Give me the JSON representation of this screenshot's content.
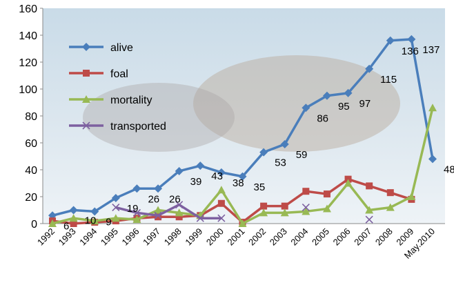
{
  "chart_data": {
    "type": "line",
    "categories": [
      "1992",
      "1993",
      "1994",
      "1995",
      "1996",
      "1997",
      "1998",
      "1999",
      "2000",
      "2001",
      "2002",
      "2003",
      "2004",
      "2005",
      "2006",
      "2007",
      "2008",
      "2009",
      "May.2010"
    ],
    "series": [
      {
        "name": "alive",
        "color": "#4a7ebb",
        "marker": "diamond",
        "values": [
          6,
          10,
          9,
          19,
          26,
          26,
          39,
          43,
          38,
          35,
          53,
          59,
          86,
          95,
          97,
          115,
          136,
          137,
          48
        ]
      },
      {
        "name": "foal",
        "color": "#be4b48",
        "marker": "square",
        "values": [
          2,
          0,
          1,
          2,
          4,
          5,
          5,
          6,
          15,
          1,
          13,
          13,
          24,
          22,
          33,
          28,
          23,
          18,
          null
        ]
      },
      {
        "name": "mortality",
        "color": "#98b954",
        "marker": "triangle",
        "values": [
          0,
          4,
          2,
          4,
          3,
          10,
          8,
          6,
          25,
          0,
          8,
          8,
          9,
          11,
          30,
          10,
          12,
          20,
          86
        ]
      },
      {
        "name": "transported",
        "color": "#7d60a0",
        "marker": "x",
        "values": [
          null,
          null,
          null,
          12,
          8,
          6,
          14,
          4,
          4,
          null,
          null,
          null,
          12,
          null,
          null,
          3,
          null,
          null,
          null
        ]
      }
    ],
    "data_labels_series": 0,
    "ylim": [
      0,
      160
    ],
    "yticks": [
      0,
      20,
      40,
      60,
      80,
      100,
      120,
      140,
      160
    ],
    "grid": false,
    "legend": "upper left"
  }
}
